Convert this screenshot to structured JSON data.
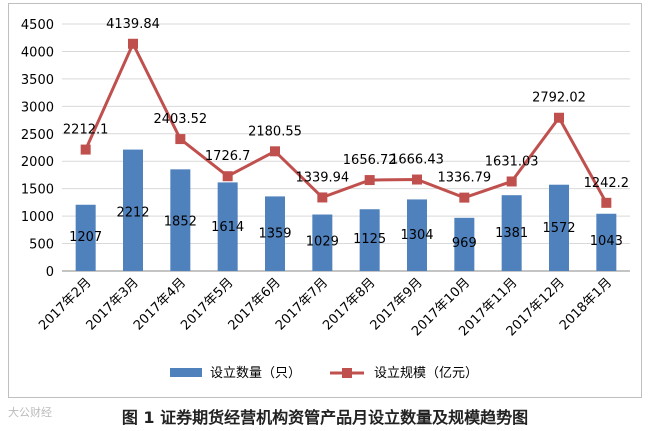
{
  "chart_data": {
    "type": "bar+line",
    "categories": [
      "2017年2月",
      "2017年3月",
      "2017年4月",
      "2017年5月",
      "2017年6月",
      "2017年7月",
      "2017年8月",
      "2017年9月",
      "2017年10月",
      "2017年11月",
      "2017年12月",
      "2018年1月"
    ],
    "series": [
      {
        "name": "设立数量（只）",
        "type": "bar",
        "values": [
          1207,
          2212,
          1852,
          1614,
          1359,
          1029,
          1125,
          1304,
          969,
          1381,
          1572,
          1043
        ],
        "labels": [
          "1207",
          "2212",
          "1852",
          "1614",
          "1359",
          "1029",
          "1125",
          "1304",
          "969",
          "1381",
          "1572",
          "1043"
        ],
        "color": "#4f81bd"
      },
      {
        "name": "设立规模（亿元）",
        "type": "line",
        "values": [
          2212.1,
          4139.84,
          2403.52,
          1726.7,
          2180.55,
          1339.94,
          1656.72,
          1666.43,
          1336.79,
          1631.03,
          2792.02,
          1242.2
        ],
        "labels": [
          "2212.1",
          "4139.84",
          "2403.52",
          "1726.7",
          "2180.55",
          "1339.94",
          "1656.72",
          "1666.43",
          "1336.79",
          "1631.03",
          "2792.02",
          "1242.2"
        ],
        "color": "#c0504d"
      }
    ],
    "yticks": [
      "0",
      "500",
      "1000",
      "1500",
      "2000",
      "2500",
      "3000",
      "3500",
      "4000",
      "4500"
    ],
    "ylim": [
      0,
      4500
    ],
    "grid": true,
    "legend": "bottom",
    "title": "图 1 证券期货经营机构资管产品月设立数量及规模趋势图"
  },
  "watermark": "大公财经"
}
